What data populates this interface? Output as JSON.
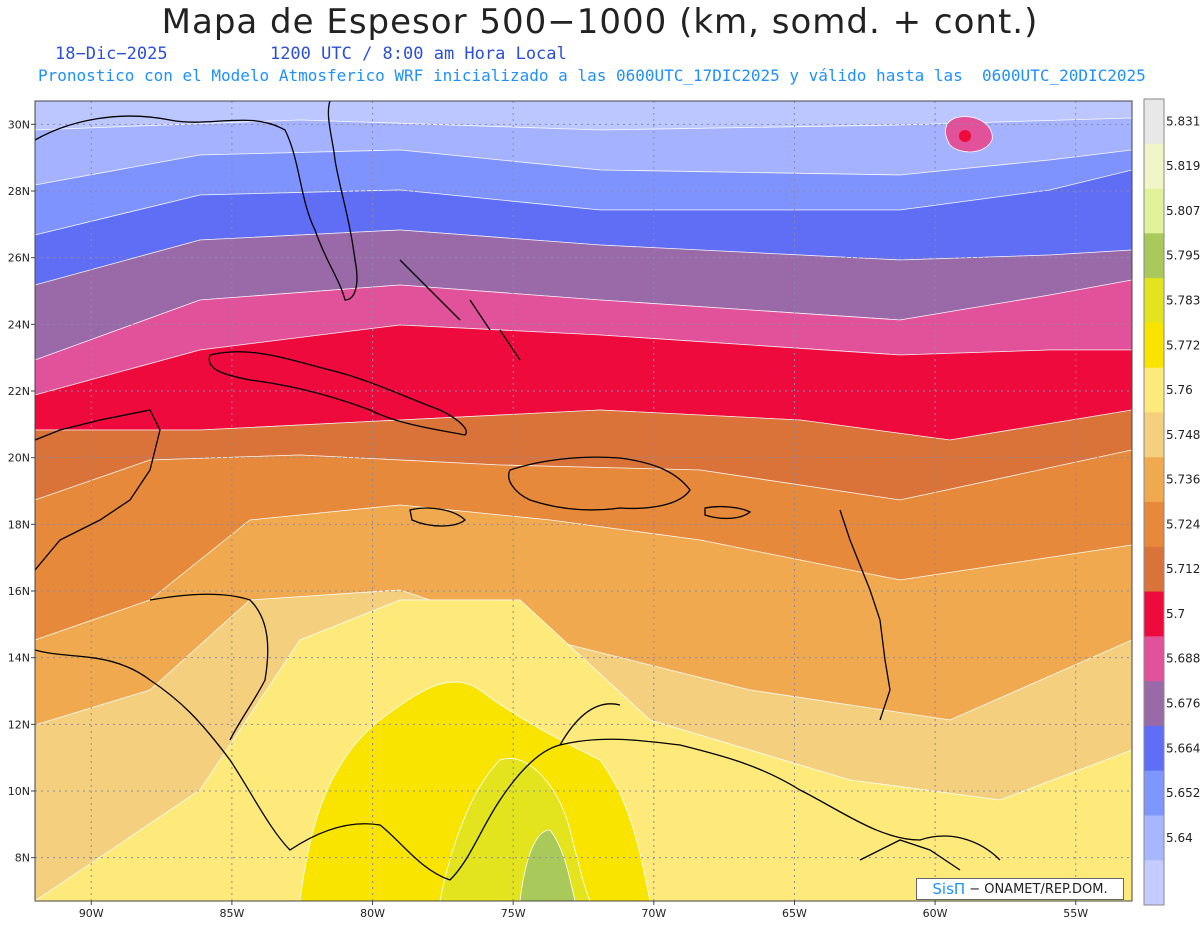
{
  "title": "Mapa de Espesor 500−1000 (km, somd. + cont.)",
  "date_label": "18−Dic−2025",
  "time_label": "1200 UTC / 8:00 am Hora Local",
  "model_info": "Pronostico con el Modelo Atmosferico WRF inicializado a las 0600UTC_17DIC2025 y válido hasta las  0600UTC_20DIC2025",
  "credit": {
    "brand": "SisΠ",
    "text": "− ONAMET/REP.DOM."
  },
  "lat_labels": [
    "30N",
    "28N",
    "26N",
    "24N",
    "22N",
    "20N",
    "18N",
    "16N",
    "14N",
    "12N",
    "10N",
    "8N"
  ],
  "lon_labels": [
    "90W",
    "85W",
    "80W",
    "75W",
    "70W",
    "65W",
    "60W",
    "55W"
  ],
  "colorbar": {
    "labels": [
      "5.831",
      "5.819",
      "5.807",
      "5.795",
      "5.783",
      "5.772",
      "5.76",
      "5.748",
      "5.736",
      "5.724",
      "5.712",
      "5.7",
      "5.688",
      "5.676",
      "5.664",
      "5.652",
      "5.64"
    ],
    "colors": [
      "#e8e8e8",
      "#f2f5c8",
      "#e2f29a",
      "#a9c95a",
      "#e3e41e",
      "#f9e400",
      "#fdea7b",
      "#f4cf7d",
      "#f0a94e",
      "#e6893a",
      "#d9733a",
      "#ee0a3c",
      "#e2529a",
      "#9a6aa8",
      "#5f6ef4",
      "#7e96ff",
      "#a7b7ff",
      "#c3cbff"
    ]
  },
  "bands_top_to_bottom": [
    "#bcc6ff",
    "#a5b2ff",
    "#7f93ff",
    "#5f6ef4",
    "#9a6aa8",
    "#e2529a",
    "#ee0a3c",
    "#d9733a",
    "#e6893a",
    "#f0a94e",
    "#f4cf7d",
    "#fdea7b",
    "#f9e400"
  ],
  "map_extent": {
    "lon_min": -92,
    "lon_max": -53,
    "lat_min": 6.7,
    "lat_max": 30.7
  }
}
